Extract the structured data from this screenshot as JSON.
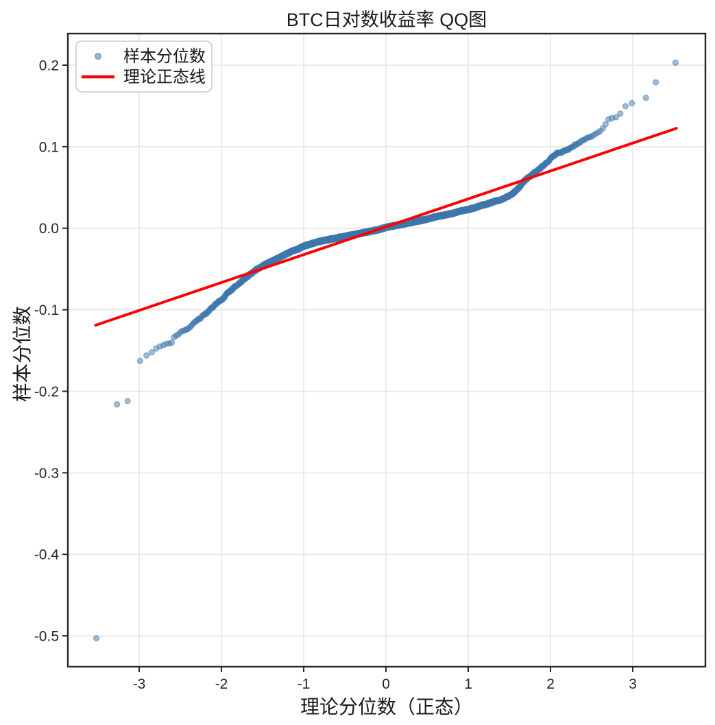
{
  "figure": {
    "background_color": "#ffffff",
    "spine_color": "#262626",
    "grid_color": "#e7e7e7",
    "tick_color": "#262626"
  },
  "chart_data": {
    "type": "scatter",
    "title": "BTC日对数收益率 QQ图",
    "xlabel": "理论分位数（正态）",
    "ylabel": "样本分位数",
    "xlim": [
      -3.867,
      3.883
    ],
    "ylim": [
      -0.5378,
      0.2387
    ],
    "x_ticks": [
      -3,
      -2,
      -1,
      0,
      1,
      2,
      3
    ],
    "x_tick_labels": [
      "-3",
      "-2",
      "-1",
      "0",
      "1",
      "2",
      "3"
    ],
    "y_ticks": [
      0.2,
      0.1,
      0.0,
      -0.1,
      -0.2,
      -0.3,
      -0.4,
      -0.5
    ],
    "y_tick_labels": [
      "0.2",
      "0.1",
      "0.0",
      "-0.1",
      "-0.2",
      "-0.3",
      "-0.4",
      "-0.5"
    ],
    "grid": true,
    "legend": {
      "position": "upper-left",
      "entries": [
        {
          "label": "样本分位数",
          "marker": "dot",
          "color": "#3f78ad"
        },
        {
          "label": "理论正态线",
          "marker": "line",
          "color": "#ff0000"
        }
      ]
    },
    "series": [
      {
        "name": "样本分位数",
        "kind": "qq_scatter",
        "n": 2500,
        "color": "#3f78ad",
        "alpha": 0.5,
        "marker_radius": 4,
        "z_cut": 3.06,
        "extreme_points_low": [
          [
            -3.52,
            -0.503
          ],
          [
            -3.27,
            -0.216
          ],
          [
            -3.14,
            -0.212
          ]
        ],
        "extreme_points_high": [
          [
            3.16,
            0.16
          ],
          [
            3.28,
            0.179
          ],
          [
            3.52,
            0.203
          ]
        ],
        "quantile_curve": [
          [
            -3.05,
            -0.168
          ],
          [
            -3.0,
            -0.164
          ],
          [
            -2.95,
            -0.159
          ],
          [
            -2.9,
            -0.154
          ],
          [
            -2.85,
            -0.152
          ],
          [
            -2.8,
            -0.149
          ],
          [
            -2.76,
            -0.146
          ],
          [
            -2.72,
            -0.143
          ],
          [
            -2.68,
            -0.142
          ],
          [
            -2.64,
            -0.141
          ],
          [
            -2.6,
            -0.14
          ],
          [
            -2.57,
            -0.133
          ],
          [
            -2.53,
            -0.131
          ],
          [
            -2.48,
            -0.127
          ],
          [
            -2.43,
            -0.124
          ],
          [
            -2.38,
            -0.121
          ],
          [
            -2.33,
            -0.116
          ],
          [
            -2.28,
            -0.112
          ],
          [
            -2.23,
            -0.108
          ],
          [
            -2.18,
            -0.104
          ],
          [
            -2.13,
            -0.099
          ],
          [
            -2.08,
            -0.094
          ],
          [
            -2.03,
            -0.09
          ],
          [
            -1.98,
            -0.086
          ],
          [
            -1.93,
            -0.08
          ],
          [
            -1.88,
            -0.076
          ],
          [
            -1.83,
            -0.071
          ],
          [
            -1.78,
            -0.067
          ],
          [
            -1.73,
            -0.063
          ],
          [
            -1.68,
            -0.059
          ],
          [
            -1.63,
            -0.055
          ],
          [
            -1.58,
            -0.051
          ],
          [
            -1.53,
            -0.048
          ],
          [
            -1.48,
            -0.045
          ],
          [
            -1.4,
            -0.041
          ],
          [
            -1.32,
            -0.037
          ],
          [
            -1.24,
            -0.033
          ],
          [
            -1.16,
            -0.029
          ],
          [
            -1.08,
            -0.026
          ],
          [
            -1.0,
            -0.022
          ],
          [
            -0.9,
            -0.019
          ],
          [
            -0.8,
            -0.016
          ],
          [
            -0.7,
            -0.014
          ],
          [
            -0.6,
            -0.012
          ],
          [
            -0.5,
            -0.01
          ],
          [
            -0.4,
            -0.008
          ],
          [
            -0.3,
            -0.006
          ],
          [
            -0.2,
            -0.004
          ],
          [
            -0.1,
            -0.002
          ],
          [
            0.0,
            0.001
          ],
          [
            0.1,
            0.003
          ],
          [
            0.2,
            0.005
          ],
          [
            0.3,
            0.007
          ],
          [
            0.4,
            0.009
          ],
          [
            0.5,
            0.011
          ],
          [
            0.6,
            0.014
          ],
          [
            0.7,
            0.016
          ],
          [
            0.8,
            0.018
          ],
          [
            0.9,
            0.021
          ],
          [
            1.0,
            0.023
          ],
          [
            1.08,
            0.025
          ],
          [
            1.16,
            0.028
          ],
          [
            1.24,
            0.03
          ],
          [
            1.32,
            0.033
          ],
          [
            1.4,
            0.035
          ],
          [
            1.48,
            0.039
          ],
          [
            1.53,
            0.042
          ],
          [
            1.58,
            0.046
          ],
          [
            1.63,
            0.051
          ],
          [
            1.68,
            0.058
          ],
          [
            1.73,
            0.062
          ],
          [
            1.78,
            0.066
          ],
          [
            1.83,
            0.07
          ],
          [
            1.88,
            0.074
          ],
          [
            1.93,
            0.078
          ],
          [
            1.98,
            0.083
          ],
          [
            2.03,
            0.088
          ],
          [
            2.08,
            0.092
          ],
          [
            2.13,
            0.093
          ],
          [
            2.18,
            0.095
          ],
          [
            2.23,
            0.098
          ],
          [
            2.28,
            0.101
          ],
          [
            2.33,
            0.104
          ],
          [
            2.38,
            0.107
          ],
          [
            2.43,
            0.11
          ],
          [
            2.48,
            0.112
          ],
          [
            2.53,
            0.114
          ],
          [
            2.58,
            0.117
          ],
          [
            2.62,
            0.12
          ],
          [
            2.66,
            0.127
          ],
          [
            2.7,
            0.133
          ],
          [
            2.75,
            0.135
          ],
          [
            2.8,
            0.137
          ],
          [
            2.84,
            0.139
          ],
          [
            2.88,
            0.148
          ],
          [
            2.92,
            0.15
          ],
          [
            2.96,
            0.152
          ],
          [
            3.0,
            0.154
          ],
          [
            3.05,
            0.156
          ]
        ]
      },
      {
        "name": "理论正态线",
        "kind": "reference_line",
        "color": "#ff0000",
        "width": 4,
        "x_range": [
          -3.53,
          3.53
        ],
        "slope": 0.0342,
        "intercept": 0.0018
      }
    ]
  }
}
